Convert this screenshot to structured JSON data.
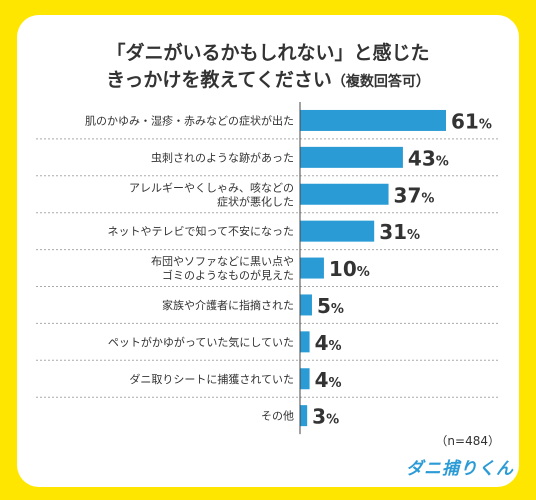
{
  "title": {
    "line1": "「ダニがいるかもしれない」と感じた",
    "line2": "きっかけを教えてください",
    "line2_suffix": "（複数回答可）"
  },
  "note": "（n=484）",
  "logo": "ダニ捕りくん",
  "colors": {
    "background": "#FFE600",
    "bar": "#2B9BD6",
    "text": "#333333"
  },
  "chart_data": {
    "type": "bar",
    "orientation": "horizontal",
    "categories": [
      [
        "肌のかゆみ・湿疹・赤みなどの症状が出た"
      ],
      [
        "虫刺されのような跡があった"
      ],
      [
        "アレルギーやくしゃみ、咳などの",
        "症状が悪化した"
      ],
      [
        "ネットやテレビで知って不安になった"
      ],
      [
        "布団やソファなどに黒い点や",
        "ゴミのようなものが見えた"
      ],
      [
        "家族や介護者に指摘された"
      ],
      [
        "ペットがかゆがっていた気にしていた"
      ],
      [
        "ダニ取りシートに捕獲されていた"
      ],
      [
        "その他"
      ]
    ],
    "values": [
      61,
      43,
      37,
      31,
      10,
      5,
      4,
      4,
      3
    ],
    "unit": "%",
    "xlim": [
      0,
      100
    ]
  }
}
